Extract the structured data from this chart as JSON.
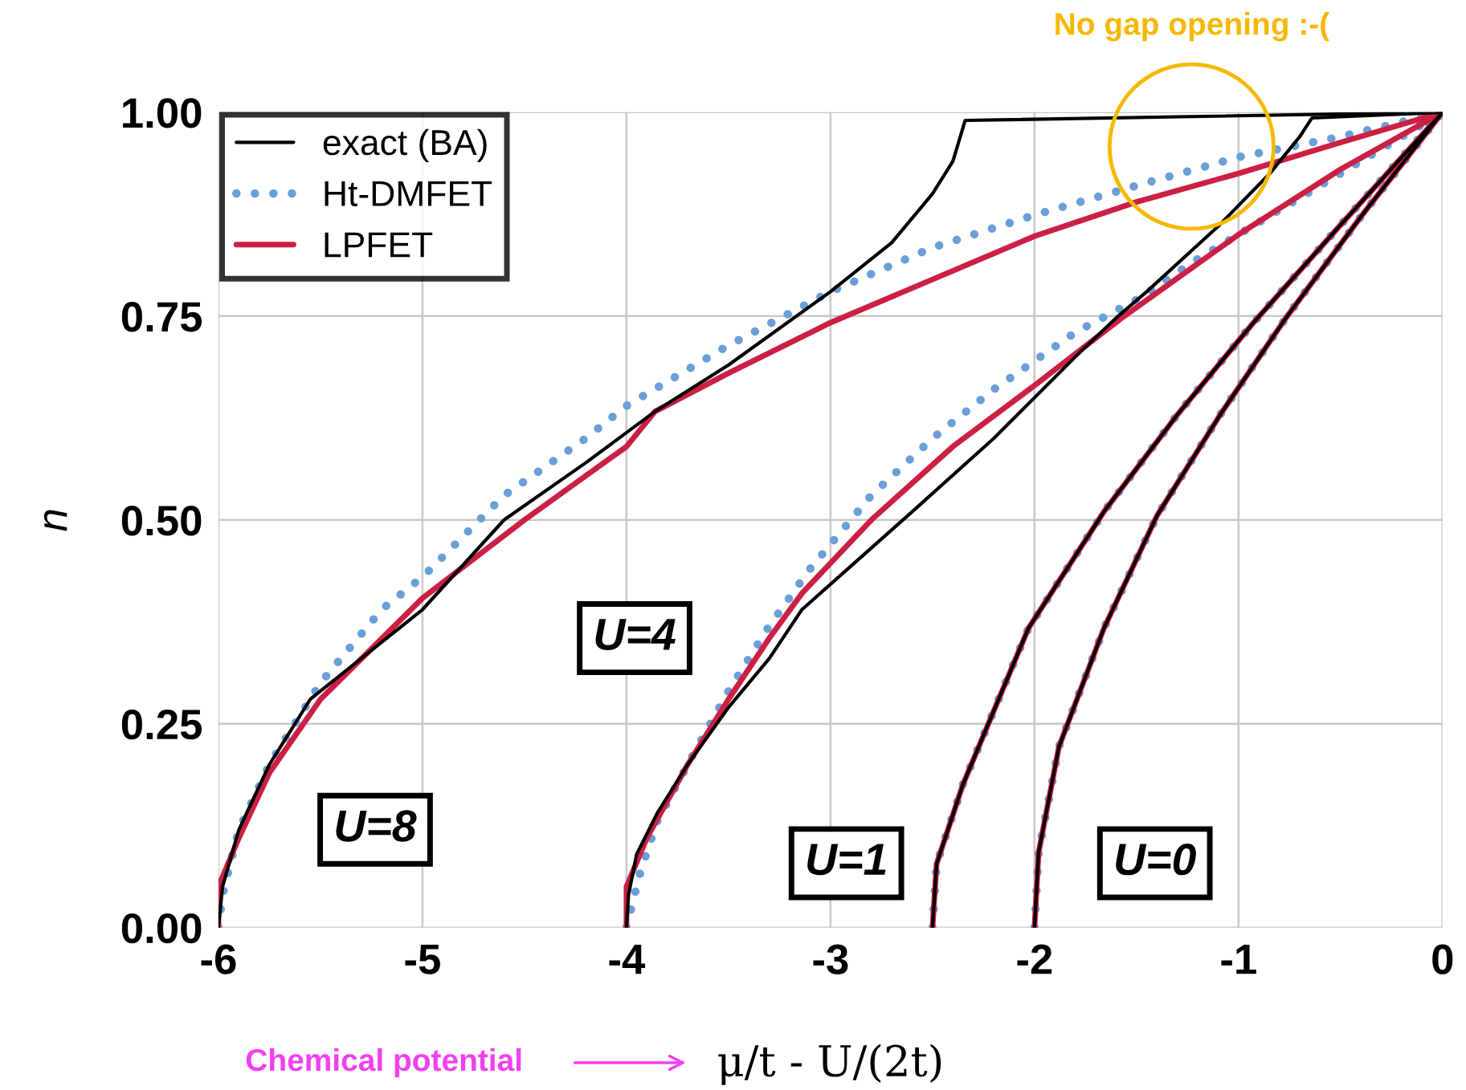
{
  "chart_data": {
    "type": "line",
    "xlabel": "μ/t - U/(2t)",
    "ylabel": "n",
    "xlim": [
      -6,
      0
    ],
    "xticks": [
      -6,
      -5,
      -4,
      -3,
      -2,
      -1,
      0
    ],
    "ylim": [
      0,
      1
    ],
    "yticks": [
      {
        "value": 0,
        "label": "0.00"
      },
      {
        "value": 0.25,
        "label": "0.25"
      },
      {
        "value": 0.5,
        "label": "0.50"
      },
      {
        "value": 0.75,
        "label": "0.75"
      },
      {
        "value": 1,
        "label": "1.00"
      }
    ],
    "grid": true,
    "legend": "top left",
    "marker": "none",
    "series": [
      {
        "name": "exact (BA)",
        "color": "#000000",
        "line_style": "solid",
        "x": [
          -6,
          -5.98,
          -5.9,
          -5.75,
          -5.55,
          -5.3,
          -5,
          -4.6,
          -4.2,
          -3.86,
          -3.5,
          -3,
          -2.7,
          -2.5,
          -2.4,
          -2.34,
          0
        ],
        "values": [
          0,
          0.05,
          0.12,
          0.2,
          0.28,
          0.33,
          0.39,
          0.5,
          0.57,
          0.633,
          0.69,
          0.78,
          0.84,
          0.9,
          0.94,
          0.99,
          1
        ]
      },
      {
        "name": "Ht-DMFET",
        "color": "#6a9fd8",
        "line_style": "dotted",
        "x": [
          -6,
          -5.98,
          -5.9,
          -5.75,
          -5.5,
          -5.2,
          -5,
          -4.6,
          -4.2,
          -4,
          -3.5,
          -3,
          -2.5,
          -2,
          -1.5,
          -1,
          -0.5,
          0
        ],
        "values": [
          0,
          0.04,
          0.12,
          0.2,
          0.3,
          0.39,
          0.43,
          0.53,
          0.6,
          0.64,
          0.714,
          0.78,
          0.834,
          0.874,
          0.91,
          0.945,
          0.97,
          1
        ]
      },
      {
        "name": "LPFET",
        "color": "#cc1f44",
        "line_style": "solid",
        "x": [
          -6,
          -6,
          -5.9,
          -5.75,
          -5.5,
          -5,
          -4.5,
          -4,
          -3.86,
          -3.5,
          -3,
          -2.5,
          -2,
          -1.5,
          -1,
          -0.5,
          0
        ],
        "values": [
          0,
          0.05,
          0.11,
          0.19,
          0.28,
          0.404,
          0.5,
          0.59,
          0.633,
          0.68,
          0.742,
          0.795,
          0.848,
          0.89,
          0.925,
          0.963,
          1
        ]
      },
      {
        "color": "#000000",
        "line_style": "solid",
        "x": [
          -4,
          -3.99,
          -3.95,
          -3.85,
          -3.7,
          -3.5,
          -3.3,
          -3.14,
          -2.96,
          -2.6,
          -2.2,
          -1.8,
          -1.59,
          -1.45,
          -1.1,
          -0.85,
          -0.7,
          -0.64,
          0
        ],
        "values": [
          0,
          0.04,
          0.09,
          0.14,
          0.2,
          0.27,
          0.33,
          0.39,
          0.43,
          0.51,
          0.6,
          0.7,
          0.75,
          0.78,
          0.86,
          0.924,
          0.97,
          0.993,
          1
        ]
      },
      {
        "color": "#6a9fd8",
        "line_style": "dotted",
        "x": [
          -4,
          -3.97,
          -3.93,
          -3.85,
          -3.7,
          -3.5,
          -3.3,
          -3.1,
          -2.8,
          -2.5,
          -2.2,
          -1.8,
          -1.5,
          -1.2,
          -0.9,
          -0.6,
          -0.3,
          0
        ],
        "values": [
          0,
          0.03,
          0.07,
          0.13,
          0.2,
          0.29,
          0.37,
          0.44,
          0.53,
          0.6,
          0.66,
          0.73,
          0.77,
          0.82,
          0.865,
          0.91,
          0.955,
          1
        ]
      },
      {
        "color": "#cc1f44",
        "line_style": "solid",
        "x": [
          -4,
          -4,
          -3.9,
          -3.7,
          -3.5,
          -3.3,
          -3.14,
          -2.8,
          -2.4,
          -2,
          -1.56,
          -1,
          -0.5,
          0
        ],
        "values": [
          0,
          0.05,
          0.11,
          0.2,
          0.28,
          0.355,
          0.41,
          0.5,
          0.59,
          0.665,
          0.75,
          0.85,
          0.93,
          1
        ]
      },
      {
        "color": "#000000",
        "line_style": "solid",
        "x": [
          -2.5,
          -2.48,
          -2.35,
          -2.03,
          -1.66,
          -1.3,
          -0.93,
          -0.51,
          0
        ],
        "values": [
          0,
          0.078,
          0.176,
          0.367,
          0.51,
          0.629,
          0.741,
          0.859,
          1
        ]
      },
      {
        "color": "#6a9fd8",
        "line_style": "dotted",
        "x": [
          -2.5,
          -2.48,
          -2.35,
          -2.03,
          -1.66,
          -1.3,
          -0.93,
          -0.51,
          0
        ],
        "values": [
          0,
          0.078,
          0.176,
          0.367,
          0.51,
          0.629,
          0.741,
          0.859,
          1
        ]
      },
      {
        "color": "#cc1f44",
        "line_style": "solid",
        "x": [
          -2.5,
          -2.48,
          -2.35,
          -2.03,
          -1.66,
          -1.3,
          -0.93,
          -0.51,
          0
        ],
        "values": [
          0,
          0.078,
          0.176,
          0.367,
          0.51,
          0.629,
          0.741,
          0.859,
          1
        ]
      },
      {
        "color": "#000000",
        "line_style": "solid",
        "x": [
          -2,
          -1.98,
          -1.88,
          -1.66,
          -1.4,
          -1.09,
          -0.77,
          -0.4,
          0
        ],
        "values": [
          0,
          0.092,
          0.222,
          0.367,
          0.505,
          0.629,
          0.747,
          0.872,
          1
        ]
      },
      {
        "color": "#6a9fd8",
        "line_style": "dotted",
        "x": [
          -2,
          -1.98,
          -1.88,
          -1.66,
          -1.4,
          -1.09,
          -0.77,
          -0.4,
          0
        ],
        "values": [
          0,
          0.092,
          0.222,
          0.367,
          0.505,
          0.629,
          0.747,
          0.872,
          1
        ]
      },
      {
        "color": "#cc1f44",
        "line_style": "solid",
        "x": [
          -2,
          -1.98,
          -1.88,
          -1.66,
          -1.4,
          -1.09,
          -0.77,
          -0.4,
          0
        ],
        "values": [
          0,
          0.092,
          0.222,
          0.367,
          0.505,
          0.629,
          0.747,
          0.872,
          1
        ]
      }
    ],
    "annotations": [
      "No gap opening :-(",
      "U=8",
      "U=4",
      "U=1",
      "U=0",
      "Chemical potential"
    ]
  }
}
